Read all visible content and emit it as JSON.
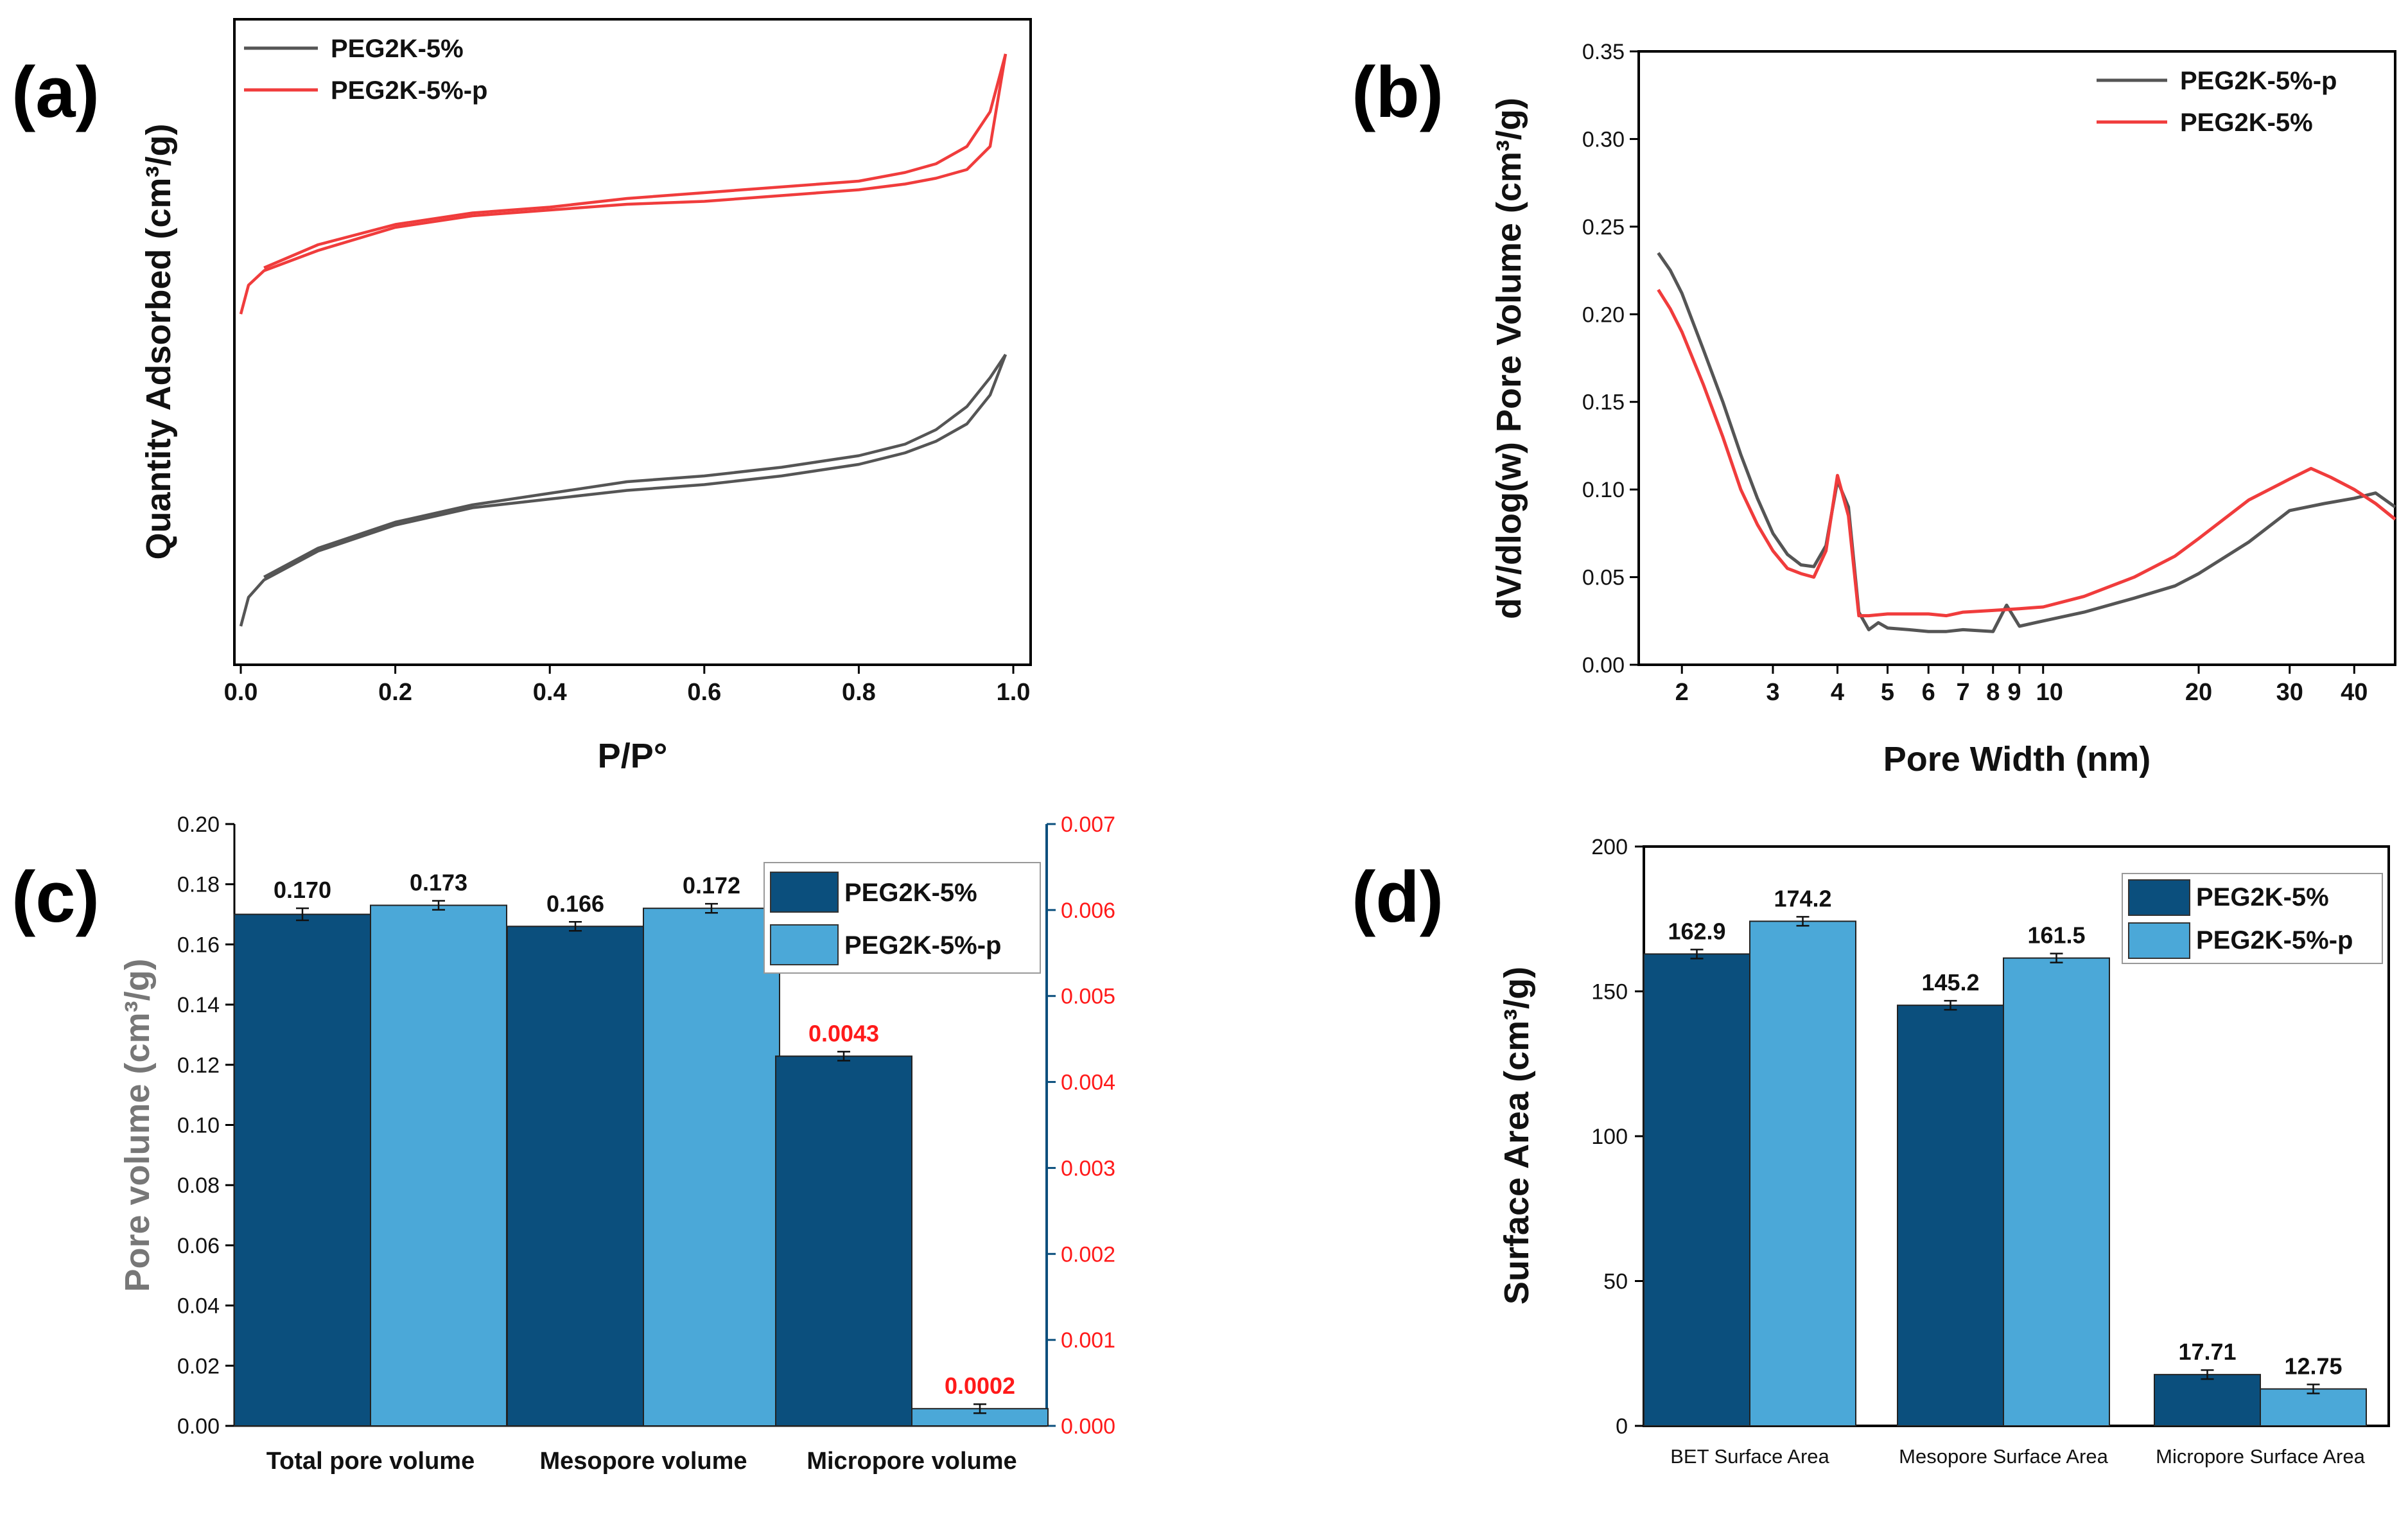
{
  "colors": {
    "gray": "#555555",
    "red": "#f03c3c",
    "dark": "#0b4f7d",
    "light": "#4ba8d8",
    "redtext": "#ff1a1a"
  },
  "panels": {
    "a": "(a)",
    "b": "(b)",
    "c": "(c)",
    "d": "(d)"
  },
  "chart_data": [
    {
      "id": "a",
      "type": "line",
      "xlabel": "P/P°",
      "ylabel": "Quantity Adsorbed (cm³/g)",
      "xlim": [
        0,
        1
      ],
      "ylim": [
        0,
        100
      ],
      "xticks": [
        "0.0",
        "0.2",
        "0.4",
        "0.6",
        "0.8",
        "1.0"
      ],
      "legend": [
        "PEG2K-5%",
        "PEG2K-5%-p"
      ],
      "series": [
        {
          "name": "PEG2K-5%",
          "color": "gray",
          "adsorption": [
            [
              0,
              0
            ],
            [
              0.01,
              5
            ],
            [
              0.03,
              8
            ],
            [
              0.1,
              13
            ],
            [
              0.2,
              17.5
            ],
            [
              0.3,
              20.5
            ],
            [
              0.4,
              22
            ],
            [
              0.5,
              23.5
            ],
            [
              0.6,
              24.5
            ],
            [
              0.7,
              26
            ],
            [
              0.8,
              28
            ],
            [
              0.86,
              30
            ],
            [
              0.9,
              32
            ],
            [
              0.94,
              35
            ],
            [
              0.97,
              40
            ],
            [
              0.99,
              47
            ]
          ],
          "desorption": [
            [
              0.99,
              47
            ],
            [
              0.97,
              43
            ],
            [
              0.94,
              38
            ],
            [
              0.9,
              34
            ],
            [
              0.86,
              31.5
            ],
            [
              0.8,
              29.5
            ],
            [
              0.7,
              27.5
            ],
            [
              0.6,
              26
            ],
            [
              0.5,
              25
            ],
            [
              0.4,
              23
            ],
            [
              0.3,
              21
            ],
            [
              0.2,
              18
            ],
            [
              0.1,
              13.5
            ],
            [
              0.03,
              8.5
            ]
          ]
        },
        {
          "name": "PEG2K-5%-p",
          "color": "red",
          "adsorption": [
            [
              0,
              54
            ],
            [
              0.01,
              59
            ],
            [
              0.03,
              61.5
            ],
            [
              0.1,
              65
            ],
            [
              0.2,
              69
            ],
            [
              0.3,
              71
            ],
            [
              0.4,
              72
            ],
            [
              0.5,
              73
            ],
            [
              0.6,
              73.5
            ],
            [
              0.7,
              74.5
            ],
            [
              0.8,
              75.5
            ],
            [
              0.86,
              76.5
            ],
            [
              0.9,
              77.5
            ],
            [
              0.94,
              79
            ],
            [
              0.97,
              83
            ],
            [
              0.99,
              99
            ]
          ],
          "desorption": [
            [
              0.99,
              99
            ],
            [
              0.97,
              89
            ],
            [
              0.94,
              83
            ],
            [
              0.9,
              80
            ],
            [
              0.86,
              78.5
            ],
            [
              0.8,
              77
            ],
            [
              0.7,
              76
            ],
            [
              0.6,
              75
            ],
            [
              0.5,
              74
            ],
            [
              0.4,
              72.5
            ],
            [
              0.3,
              71.5
            ],
            [
              0.2,
              69.5
            ],
            [
              0.1,
              66
            ],
            [
              0.03,
              62
            ]
          ]
        }
      ]
    },
    {
      "id": "b",
      "type": "line",
      "xscale": "log",
      "xlabel": "Pore Width (nm)",
      "ylabel": "dV/dlog(w) Pore Volume (cm³/g)",
      "xlim": [
        1.65,
        48
      ],
      "ylim": [
        0,
        0.35
      ],
      "xticks": [
        2,
        3,
        4,
        5,
        6,
        7,
        8,
        9,
        10,
        20,
        30,
        40
      ],
      "xticklabels": [
        "2",
        "3",
        "4",
        "5",
        "6",
        "7",
        "8",
        "9",
        "10",
        "20",
        "30",
        "40"
      ],
      "yticks": [
        "0.00",
        "0.05",
        "0.10",
        "0.15",
        "0.20",
        "0.25",
        "0.30",
        "0.35"
      ],
      "legend": [
        "PEG2K-5%-p",
        "PEG2K-5%"
      ],
      "series": [
        {
          "name": "PEG2K-5%-p",
          "color": "gray",
          "points": [
            [
              1.8,
              0.235
            ],
            [
              1.9,
              0.225
            ],
            [
              2.0,
              0.212
            ],
            [
              2.2,
              0.18
            ],
            [
              2.4,
              0.15
            ],
            [
              2.6,
              0.12
            ],
            [
              2.8,
              0.095
            ],
            [
              3.0,
              0.075
            ],
            [
              3.2,
              0.063
            ],
            [
              3.4,
              0.057
            ],
            [
              3.6,
              0.056
            ],
            [
              3.8,
              0.068
            ],
            [
              4.0,
              0.105
            ],
            [
              4.2,
              0.09
            ],
            [
              4.4,
              0.03
            ],
            [
              4.6,
              0.02
            ],
            [
              4.8,
              0.024
            ],
            [
              5.0,
              0.021
            ],
            [
              5.5,
              0.02
            ],
            [
              6.0,
              0.019
            ],
            [
              6.5,
              0.019
            ],
            [
              7.0,
              0.02
            ],
            [
              8.0,
              0.019
            ],
            [
              8.5,
              0.034
            ],
            [
              9.0,
              0.022
            ],
            [
              10,
              0.025
            ],
            [
              12,
              0.03
            ],
            [
              15,
              0.038
            ],
            [
              18,
              0.045
            ],
            [
              20,
              0.052
            ],
            [
              25,
              0.07
            ],
            [
              30,
              0.088
            ],
            [
              35,
              0.092
            ],
            [
              40,
              0.095
            ],
            [
              44,
              0.098
            ],
            [
              48,
              0.09
            ]
          ]
        },
        {
          "name": "PEG2K-5%",
          "color": "red",
          "points": [
            [
              1.8,
              0.214
            ],
            [
              1.9,
              0.203
            ],
            [
              2.0,
              0.19
            ],
            [
              2.2,
              0.16
            ],
            [
              2.4,
              0.13
            ],
            [
              2.6,
              0.1
            ],
            [
              2.8,
              0.08
            ],
            [
              3.0,
              0.065
            ],
            [
              3.2,
              0.055
            ],
            [
              3.4,
              0.052
            ],
            [
              3.6,
              0.05
            ],
            [
              3.8,
              0.065
            ],
            [
              4.0,
              0.108
            ],
            [
              4.2,
              0.085
            ],
            [
              4.4,
              0.028
            ],
            [
              4.6,
              0.028
            ],
            [
              5.0,
              0.029
            ],
            [
              6.0,
              0.029
            ],
            [
              6.5,
              0.028
            ],
            [
              7.0,
              0.03
            ],
            [
              8.0,
              0.031
            ],
            [
              9.0,
              0.032
            ],
            [
              10,
              0.033
            ],
            [
              12,
              0.039
            ],
            [
              15,
              0.05
            ],
            [
              18,
              0.062
            ],
            [
              20,
              0.072
            ],
            [
              25,
              0.094
            ],
            [
              30,
              0.106
            ],
            [
              33,
              0.112
            ],
            [
              36,
              0.107
            ],
            [
              40,
              0.1
            ],
            [
              44,
              0.092
            ],
            [
              48,
              0.083
            ]
          ]
        }
      ]
    },
    {
      "id": "c",
      "type": "bar",
      "ylabel": "Pore volume (cm³/g)",
      "ylim": [
        0,
        0.2
      ],
      "y2lim": [
        0,
        0.007
      ],
      "yticks": [
        "0.00",
        "0.02",
        "0.04",
        "0.06",
        "0.08",
        "0.10",
        "0.12",
        "0.14",
        "0.16",
        "0.18",
        "0.20"
      ],
      "y2ticks": [
        "0.000",
        "0.001",
        "0.002",
        "0.003",
        "0.004",
        "0.005",
        "0.006",
        "0.007"
      ],
      "categories": [
        "Total pore volume",
        "Mesopore volume",
        "Micropore volume"
      ],
      "legend": [
        "PEG2K-5%",
        "PEG2K-5%-p"
      ],
      "series": [
        {
          "name": "PEG2K-5%",
          "color": "dark",
          "values": [
            0.17,
            0.166,
            0.0043
          ],
          "axis": [
            "left",
            "left",
            "right"
          ],
          "errors": [
            0.002,
            0.001,
            4e-05
          ],
          "labels": [
            "0.170",
            "0.166",
            "0.0043"
          ]
        },
        {
          "name": "PEG2K-5%-p",
          "color": "light",
          "values": [
            0.173,
            0.172,
            0.0002
          ],
          "axis": [
            "left",
            "left",
            "right"
          ],
          "errors": [
            0.0015,
            0.0015,
            4e-05
          ],
          "labels": [
            "0.173",
            "0.172",
            "0.0002"
          ]
        }
      ]
    },
    {
      "id": "d",
      "type": "bar",
      "ylabel": "Surface Area (cm³/g)",
      "ylim": [
        0,
        200
      ],
      "yticks": [
        "0",
        "50",
        "100",
        "150",
        "200"
      ],
      "categories": [
        "BET Surface Area",
        "Mesopore Surface Area",
        "Micropore Surface Area"
      ],
      "legend": [
        "PEG2K-5%",
        "PEG2K-5%-p"
      ],
      "series": [
        {
          "name": "PEG2K-5%",
          "color": "dark",
          "values": [
            162.9,
            145.2,
            17.71
          ],
          "errors": [
            1,
            1.5,
            1.5
          ],
          "labels": [
            "162.9",
            "145.2",
            "17.71"
          ]
        },
        {
          "name": "PEG2K-5%-p",
          "color": "light",
          "values": [
            174.2,
            161.5,
            12.75
          ],
          "errors": [
            1.5,
            1.5,
            1.5
          ],
          "labels": [
            "174.2",
            "161.5",
            "12.75"
          ]
        }
      ]
    }
  ]
}
